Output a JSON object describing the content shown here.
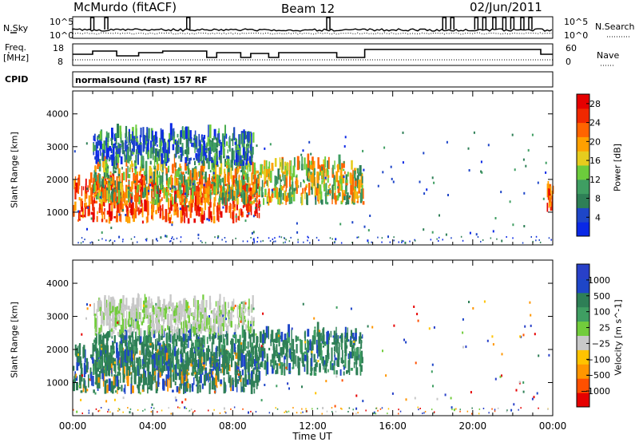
{
  "header": {
    "station": "McMurdo (fitACF)",
    "beam": "Beam 12",
    "date": "02/Jun/2011"
  },
  "status_panels": {
    "nsky_label": "N.Sky",
    "nsky_ticks": [
      "10^5",
      "10^0"
    ],
    "nsearch_label": "N.Search",
    "nsearch_ticks": [
      "10^5",
      "10^0"
    ],
    "freq_label_1": "Freq.",
    "freq_label_2": "[MHz]",
    "freq_ticks": [
      "18",
      "8"
    ],
    "nave_label": "Nave",
    "nave_ticks": [
      "60",
      "0"
    ],
    "cpid_label": "CPID",
    "cpid_value": "normalsound (fast) 157 RF"
  },
  "colors": {
    "power": [
      "#0a28e6",
      "#1e46c8",
      "#2e7f56",
      "#3f9e62",
      "#6ccc3c",
      "#e6cc1e",
      "#ffa000",
      "#ff6400",
      "#f02800",
      "#e60000"
    ],
    "velocity": [
      "#e60000",
      "#ff5000",
      "#ff9600",
      "#ffc300",
      "#c8c8c8",
      "#72cc3c",
      "#3f9e62",
      "#2e7f56",
      "#1e46c8",
      "#2840c8"
    ]
  },
  "chart_data": [
    {
      "type": "heatmap",
      "name": "power",
      "ylabel": "Slant Range [km]",
      "yticks": [
        "1000",
        "2000",
        "3000",
        "4000"
      ],
      "ylim": [
        0,
        4700
      ],
      "xlim": [
        0,
        24
      ],
      "colorbar_label": "Power [dB]",
      "colorbar_ticks": [
        "4",
        "8",
        "12",
        "16",
        "20",
        "24",
        "28"
      ],
      "colorbar_range": [
        0,
        30
      ],
      "regions": [
        {
          "t0": 0.0,
          "t1": 9.3,
          "r0": 650,
          "r1": 1900,
          "level": "high"
        },
        {
          "t0": 1.0,
          "t1": 14.5,
          "r0": 1200,
          "r1": 2400,
          "level": "mid"
        },
        {
          "t0": 1.0,
          "t1": 9.0,
          "r0": 2400,
          "r1": 3300,
          "level": "low"
        },
        {
          "t0": 23.7,
          "t1": 24.0,
          "r0": 1000,
          "r1": 1700,
          "level": "high"
        }
      ]
    },
    {
      "type": "heatmap",
      "name": "velocity",
      "ylabel": "Slant Range [km]",
      "yticks": [
        "1000",
        "2000",
        "3000",
        "4000"
      ],
      "ylim": [
        0,
        4700
      ],
      "xlim": [
        0,
        24
      ],
      "colorbar_label": "Velocity [m s^-1]",
      "colorbar_ticks": [
        "1000",
        "500",
        "100",
        "25",
        "−25",
        "−100",
        "−500",
        "−1000"
      ],
      "regions": [
        {
          "t0": 0.0,
          "t1": 9.3,
          "r0": 650,
          "r1": 1900,
          "level": "toward"
        },
        {
          "t0": 1.0,
          "t1": 14.5,
          "r0": 1200,
          "r1": 2400,
          "level": "weak"
        },
        {
          "t0": 1.0,
          "t1": 9.0,
          "r0": 2400,
          "r1": 3300,
          "level": "ground"
        }
      ]
    }
  ],
  "x_axis": {
    "ticks": [
      "00:00",
      "04:00",
      "08:00",
      "12:00",
      "16:00",
      "20:00",
      "00:00"
    ],
    "label": "Time UT"
  }
}
